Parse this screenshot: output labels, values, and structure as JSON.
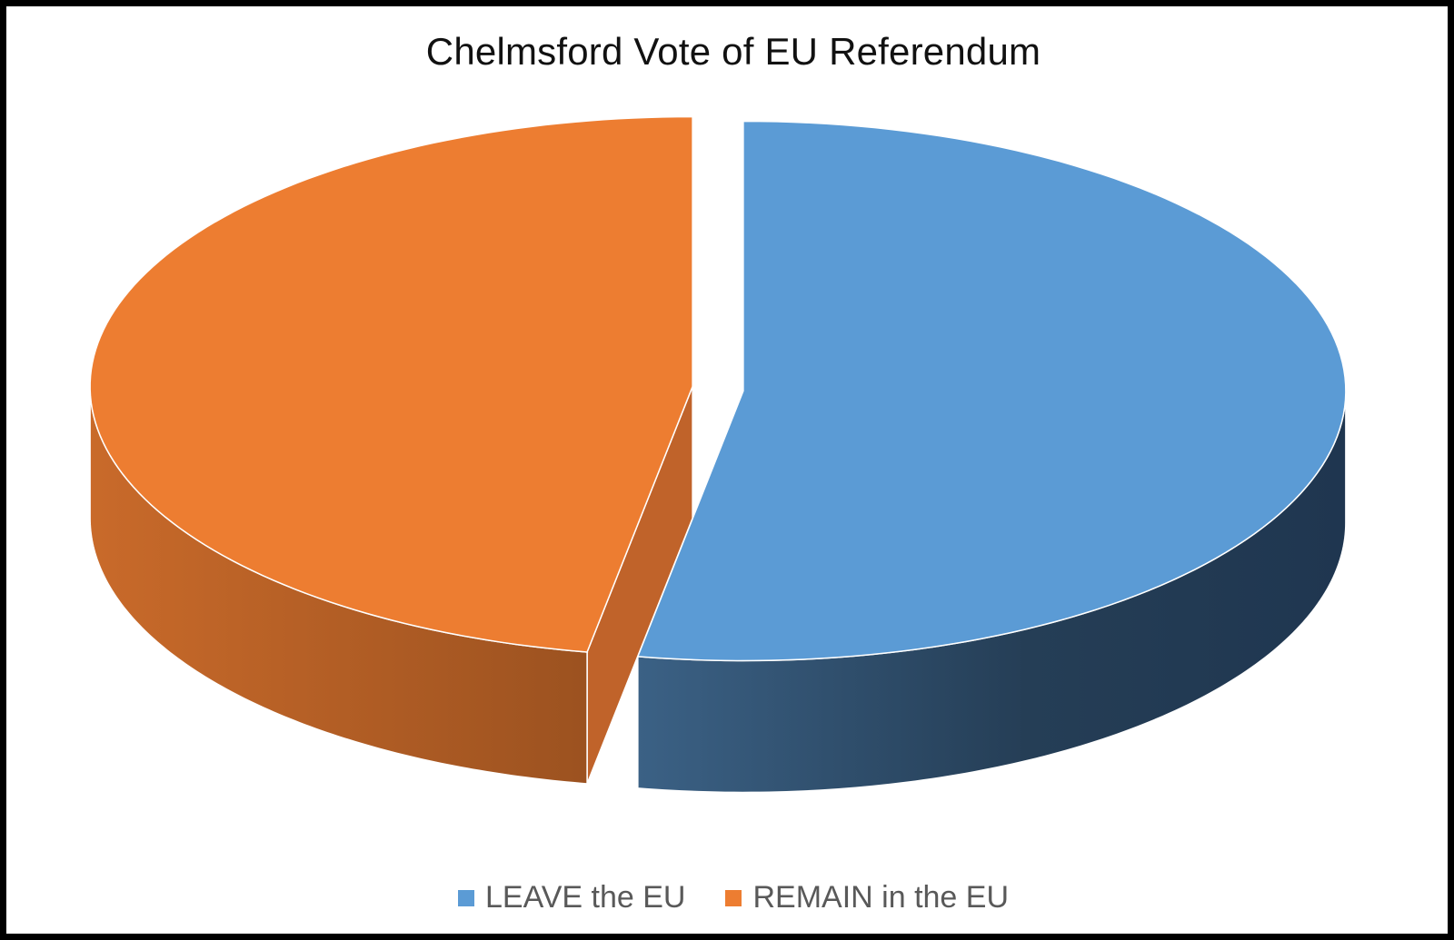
{
  "chart_data": {
    "type": "pie",
    "style": "3d-exploded",
    "title": "Chelmsford Vote of EU Referendum",
    "categories": [
      "LEAVE the EU",
      "REMAIN in the EU"
    ],
    "values": [
      52.8,
      47.2
    ],
    "colors": [
      "#5b9bd5",
      "#ed7d31"
    ],
    "side_colors": [
      "#2b4a66",
      "#b65f25"
    ],
    "legend": "bottom"
  }
}
